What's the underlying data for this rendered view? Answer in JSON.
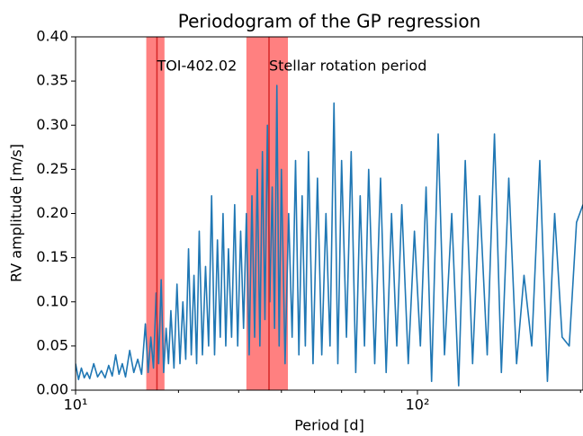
{
  "chart_data": {
    "type": "line",
    "title": "Periodogram of the GP regression",
    "xlabel": "Period [d]",
    "ylabel": "RV amplitude [m/s]",
    "xscale": "log",
    "color": "#1f77b4",
    "xlim": [
      10,
      305
    ],
    "ylim": [
      0,
      0.4
    ],
    "xticks": [
      {
        "value": 10,
        "label": "10¹"
      },
      {
        "value": 100,
        "label": "10²"
      }
    ],
    "xminorticks": [
      20,
      30,
      40,
      50,
      60,
      70,
      80,
      90,
      200,
      300
    ],
    "yticks": [
      {
        "value": 0,
        "label": "0.00"
      },
      {
        "value": 0.05,
        "label": "0.05"
      },
      {
        "value": 0.1,
        "label": "0.10"
      },
      {
        "value": 0.15,
        "label": "0.15"
      },
      {
        "value": 0.2,
        "label": "0.20"
      },
      {
        "value": 0.25,
        "label": "0.25"
      },
      {
        "value": 0.3,
        "label": "0.30"
      },
      {
        "value": 0.35,
        "label": "0.35"
      },
      {
        "value": 0.4,
        "label": "0.40"
      }
    ],
    "spans": [
      {
        "name": "TOI-402.02",
        "xmin": 16.1,
        "xmax": 18.2,
        "x": 17.3,
        "color": "#ff8080",
        "line_color": "#d62728"
      },
      {
        "name": "Stellar rotation period",
        "xmin": 31.6,
        "xmax": 41.8,
        "x": 36.8,
        "color": "#ff8080",
        "line_color": "#d62728"
      }
    ],
    "x": [
      10.0,
      10.2,
      10.4,
      10.6,
      10.8,
      11.0,
      11.3,
      11.6,
      11.9,
      12.2,
      12.5,
      12.8,
      13.1,
      13.4,
      13.7,
      14.0,
      14.4,
      14.8,
      15.2,
      15.6,
      16.0,
      16.3,
      16.6,
      16.9,
      17.2,
      17.5,
      17.8,
      18.1,
      18.4,
      18.7,
      19.0,
      19.4,
      19.8,
      20.2,
      20.6,
      21.0,
      21.4,
      21.8,
      22.2,
      22.6,
      23.0,
      23.5,
      24.0,
      24.5,
      25.0,
      25.5,
      26.0,
      26.5,
      27.0,
      27.5,
      28.0,
      28.6,
      29.2,
      29.8,
      30.4,
      31.0,
      31.6,
      32.2,
      32.8,
      33.4,
      34.0,
      34.6,
      35.2,
      35.8,
      36.4,
      37.0,
      37.6,
      38.2,
      38.8,
      39.4,
      40.0,
      41.0,
      42.0,
      43.0,
      44.0,
      45.0,
      46.0,
      47.0,
      48.0,
      49.5,
      51.0,
      52.5,
      54.0,
      55.5,
      57.0,
      58.5,
      60.0,
      62.0,
      64.0,
      66.0,
      68.0,
      70.0,
      72.0,
      75.0,
      78.0,
      81.0,
      84.0,
      87.0,
      90.0,
      94.0,
      98.0,
      102.0,
      106.0,
      110.0,
      115.0,
      120.0,
      126.0,
      132.0,
      138.0,
      145.0,
      152.0,
      160.0,
      168.0,
      176.0,
      185.0,
      195.0,
      205.0,
      216.0,
      228.0,
      240.0,
      252.0,
      265.0,
      278.0,
      292.0,
      305.0
    ],
    "values": [
      0.03,
      0.012,
      0.025,
      0.014,
      0.02,
      0.013,
      0.03,
      0.015,
      0.022,
      0.014,
      0.028,
      0.016,
      0.04,
      0.018,
      0.03,
      0.015,
      0.045,
      0.02,
      0.035,
      0.018,
      0.075,
      0.02,
      0.06,
      0.025,
      0.11,
      0.03,
      0.125,
      0.02,
      0.07,
      0.03,
      0.09,
      0.025,
      0.12,
      0.03,
      0.1,
      0.035,
      0.16,
      0.04,
      0.13,
      0.03,
      0.18,
      0.04,
      0.14,
      0.05,
      0.22,
      0.04,
      0.17,
      0.06,
      0.2,
      0.05,
      0.16,
      0.06,
      0.21,
      0.05,
      0.18,
      0.07,
      0.2,
      0.04,
      0.22,
      0.06,
      0.25,
      0.05,
      0.27,
      0.08,
      0.3,
      0.1,
      0.23,
      0.07,
      0.345,
      0.05,
      0.25,
      0.03,
      0.2,
      0.06,
      0.26,
      0.04,
      0.22,
      0.05,
      0.27,
      0.03,
      0.24,
      0.04,
      0.2,
      0.05,
      0.325,
      0.03,
      0.26,
      0.06,
      0.27,
      0.02,
      0.22,
      0.05,
      0.25,
      0.03,
      0.24,
      0.02,
      0.2,
      0.05,
      0.21,
      0.03,
      0.18,
      0.05,
      0.23,
      0.01,
      0.29,
      0.04,
      0.2,
      0.005,
      0.26,
      0.03,
      0.22,
      0.04,
      0.29,
      0.02,
      0.24,
      0.03,
      0.13,
      0.05,
      0.26,
      0.01,
      0.2,
      0.06,
      0.05,
      0.19,
      0.21
    ]
  }
}
